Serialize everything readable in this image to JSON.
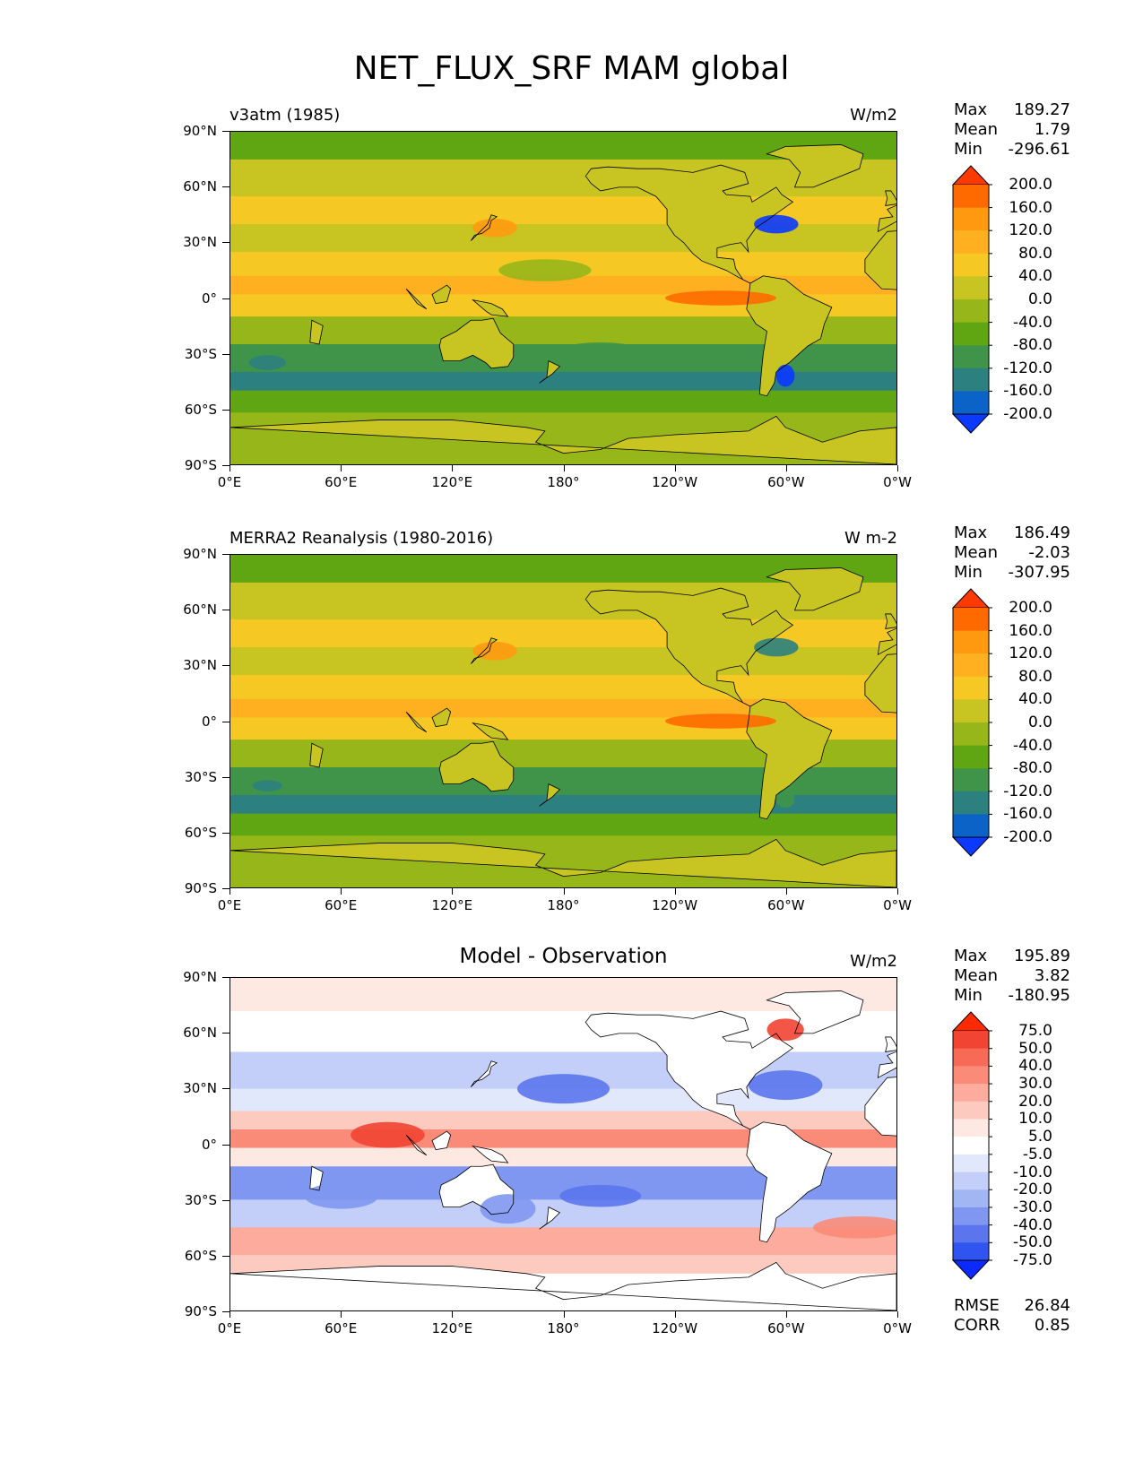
{
  "title": "NET_FLUX_SRF MAM global",
  "lat_ticks": [
    "90°N",
    "60°N",
    "30°N",
    "0°",
    "30°S",
    "60°S",
    "90°S"
  ],
  "lon_ticks": [
    "0°E",
    "60°E",
    "120°E",
    "180°",
    "120°W",
    "60°W",
    "0°W"
  ],
  "panels": [
    {
      "title_left": "v3atm (1985)",
      "title_center": "",
      "units": "W/m2",
      "stats": {
        "max_label": "Max",
        "max": "189.27",
        "mean_label": "Mean",
        "mean": "1.79",
        "min_label": "Min",
        "min": "-296.61"
      },
      "levels": [
        "200.0",
        "160.0",
        "120.0",
        "80.0",
        "40.0",
        "0.0",
        "-40.0",
        "-80.0",
        "-120.0",
        "-160.0",
        "-200.0"
      ],
      "colors": [
        "#ff3a00",
        "#ff6a00",
        "#ff9a10",
        "#ffb021",
        "#f5c823",
        "#c8c523",
        "#97b61a",
        "#60a612",
        "#3f9449",
        "#2c8080",
        "#0b63c8",
        "#0b39ff"
      ]
    },
    {
      "title_left": "MERRA2 Reanalysis (1980-2016)",
      "title_center": "",
      "units": "W m-2",
      "stats": {
        "max_label": "Max",
        "max": "186.49",
        "mean_label": "Mean",
        "mean": "-2.03",
        "min_label": "Min",
        "min": "-307.95"
      },
      "levels": [
        "200.0",
        "160.0",
        "120.0",
        "80.0",
        "40.0",
        "0.0",
        "-40.0",
        "-80.0",
        "-120.0",
        "-160.0",
        "-200.0"
      ],
      "colors": [
        "#ff3a00",
        "#ff6a00",
        "#ff9a10",
        "#ffb021",
        "#f5c823",
        "#c8c523",
        "#97b61a",
        "#60a612",
        "#3f9449",
        "#2c8080",
        "#0b63c8",
        "#0b39ff"
      ]
    },
    {
      "title_left": "",
      "title_center": "Model - Observation",
      "units": "W/m2",
      "stats": {
        "max_label": "Max",
        "max": "195.89",
        "mean_label": "Mean",
        "mean": "3.82",
        "min_label": "Min",
        "min": "-180.95"
      },
      "levels": [
        "75.0",
        "50.0",
        "40.0",
        "30.0",
        "20.0",
        "10.0",
        "5.0",
        "-5.0",
        "-10.0",
        "-20.0",
        "-30.0",
        "-40.0",
        "-50.0",
        "-75.0"
      ],
      "colors": [
        "#ff2a00",
        "#f24432",
        "#f76a55",
        "#fa8b78",
        "#fcab9c",
        "#fdcac0",
        "#fee8e2",
        "#ffffff",
        "#e2e8fb",
        "#c3cff8",
        "#a2b6f4",
        "#7f97f0",
        "#5b76ec",
        "#3054f0",
        "#0a2aff"
      ],
      "rmse_label": "RMSE",
      "rmse": "26.84",
      "corr_label": "CORR",
      "corr": "0.85"
    }
  ]
}
